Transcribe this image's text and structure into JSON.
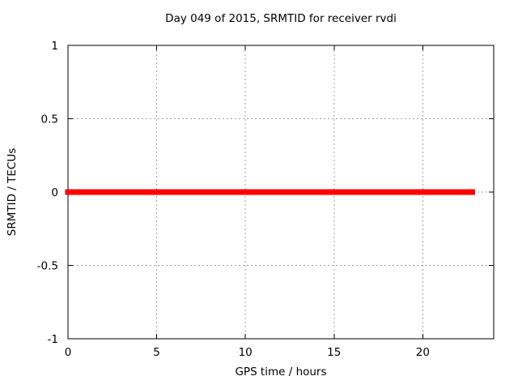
{
  "chart_data": {
    "type": "line",
    "title": "Day 049 of 2015, SRMTID for receiver rvdi",
    "xlabel": "GPS time / hours",
    "ylabel": "SRMTID / TECUs",
    "xlim": [
      0,
      24
    ],
    "ylim": [
      -1,
      1
    ],
    "x_ticks": [
      0,
      5,
      10,
      15,
      20
    ],
    "y_ticks": [
      -1,
      -0.5,
      0,
      0.5,
      1
    ],
    "grid": true,
    "legend_position": "none",
    "series": [
      {
        "name": "SRMTID",
        "color": "#ff0000",
        "line_width": 7,
        "points": [
          [
            0,
            0
          ],
          [
            22.8,
            0
          ]
        ]
      }
    ],
    "colors": {
      "background": "#ffffff",
      "border": "#000000",
      "grid": "#a0a0a0",
      "text": "#000000"
    }
  }
}
